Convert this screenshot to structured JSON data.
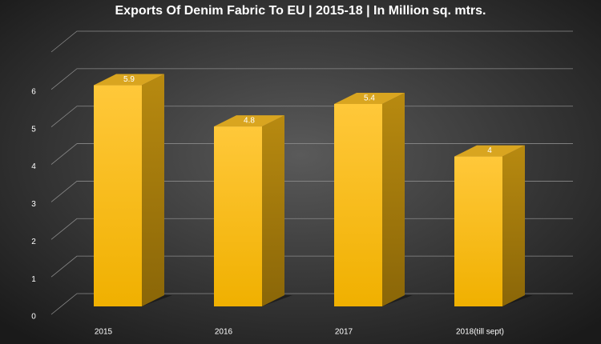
{
  "chart_data": {
    "type": "bar3d",
    "title": "Exports Of Denim Fabric To EU | 2015-18 | In Million sq. mtrs.",
    "categories": [
      "2015",
      "2016",
      "2017",
      "2018(till sept)"
    ],
    "values": [
      5.9,
      4.8,
      5.4,
      4
    ],
    "color": "#ffc000",
    "ylim": [
      0,
      7
    ],
    "yticks": [
      0,
      1,
      2,
      3,
      4,
      5,
      6
    ],
    "grid": true
  }
}
